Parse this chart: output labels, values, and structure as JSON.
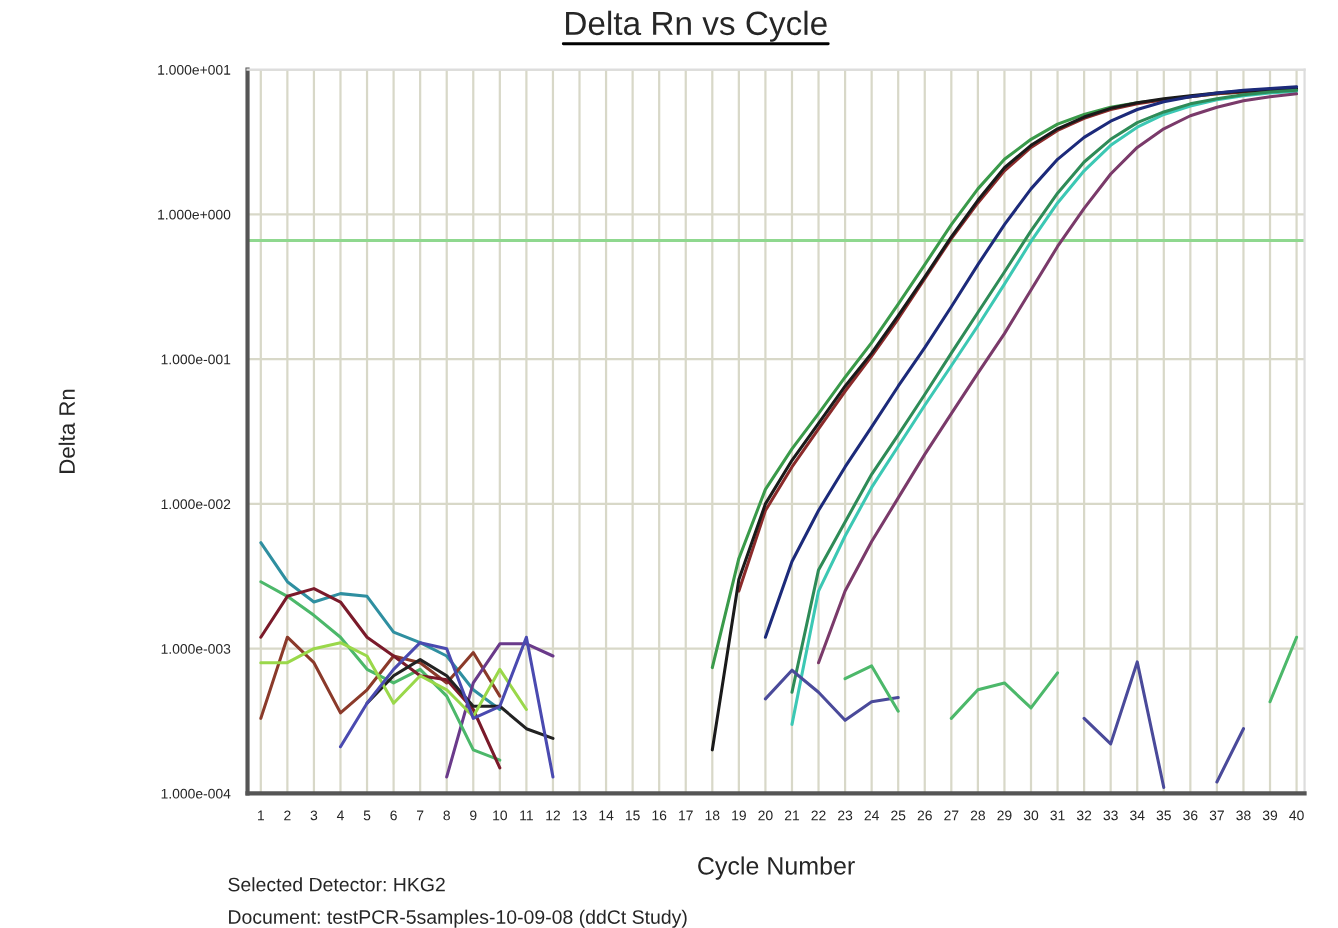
{
  "chart_data": {
    "type": "line",
    "title": "Delta Rn vs Cycle",
    "xlabel": "Cycle Number",
    "ylabel": "Delta Rn",
    "annotations": [
      "Selected Detector: HKG2",
      "Document: testPCR-5samples-10-09-08 (ddCt Study)"
    ],
    "log": "y",
    "grid": true,
    "legend": false,
    "marker": "none",
    "line_style": "solid",
    "xlim": [
      0.5,
      40.3
    ],
    "xticks": [
      1,
      2,
      3,
      4,
      5,
      6,
      7,
      8,
      9,
      10,
      11,
      12,
      13,
      14,
      15,
      16,
      17,
      18,
      19,
      20,
      21,
      22,
      23,
      24,
      25,
      26,
      27,
      28,
      29,
      30,
      31,
      32,
      33,
      34,
      35,
      36,
      37,
      38,
      39,
      40
    ],
    "ylim": [
      0.0001,
      10
    ],
    "yticks": [
      {
        "value": 0.0001,
        "label": "1.000e-004"
      },
      {
        "value": 0.001,
        "label": "1.000e-003"
      },
      {
        "value": 0.01,
        "label": "1.000e-002"
      },
      {
        "value": 0.1,
        "label": "1.000e-001"
      },
      {
        "value": 1,
        "label": "1.000e+000"
      },
      {
        "value": 10,
        "label": "1.000e+001"
      }
    ],
    "ref_lines": [
      {
        "axis": "y",
        "value": 0.66,
        "color": "#8fd88f"
      }
    ],
    "series": [
      {
        "color": "#3a9a4a",
        "x": [
          18,
          19,
          20,
          21,
          22,
          23,
          24,
          25,
          26,
          27,
          28,
          29,
          30,
          31,
          32,
          33,
          34,
          35,
          36,
          37,
          38,
          39,
          40
        ],
        "values": [
          0.00074,
          0.0042,
          0.0126,
          0.024,
          0.042,
          0.075,
          0.13,
          0.24,
          0.45,
          0.85,
          1.5,
          2.4,
          3.3,
          4.2,
          4.9,
          5.5,
          5.9,
          6.2,
          6.5,
          6.8,
          7.0,
          7.1,
          7.2
        ]
      },
      {
        "color": "#8b2a2a",
        "x": [
          19,
          20,
          21,
          22,
          23,
          24,
          25,
          26,
          27,
          28,
          29,
          30,
          31,
          32,
          33,
          34,
          35,
          36,
          37,
          38,
          39,
          40
        ],
        "values": [
          0.0025,
          0.009,
          0.018,
          0.033,
          0.06,
          0.105,
          0.19,
          0.36,
          0.68,
          1.2,
          2.0,
          2.9,
          3.8,
          4.6,
          5.3,
          5.8,
          6.2,
          6.5,
          6.8,
          7.0,
          7.2,
          7.3
        ]
      },
      {
        "color": "#1a1a1a",
        "x": [
          18,
          19,
          20,
          21,
          22,
          23,
          24,
          25,
          26,
          27,
          28,
          29,
          30,
          31,
          32,
          33,
          34,
          35,
          36,
          37,
          38,
          39,
          40
        ],
        "values": [
          0.0002,
          0.003,
          0.01,
          0.02,
          0.036,
          0.065,
          0.11,
          0.2,
          0.37,
          0.7,
          1.25,
          2.1,
          3.0,
          3.9,
          4.7,
          5.4,
          5.9,
          6.3,
          6.6,
          6.9,
          7.1,
          7.3,
          7.4
        ]
      },
      {
        "color": "#1c2a7a",
        "x": [
          20,
          21,
          22,
          23,
          24,
          25,
          26,
          27,
          28,
          29,
          30,
          31,
          32,
          33,
          34,
          35,
          36,
          37,
          38,
          39,
          40
        ],
        "values": [
          0.0012,
          0.004,
          0.009,
          0.018,
          0.034,
          0.065,
          0.12,
          0.23,
          0.45,
          0.85,
          1.5,
          2.4,
          3.4,
          4.4,
          5.3,
          6.0,
          6.5,
          6.9,
          7.2,
          7.4,
          7.6
        ]
      },
      {
        "color": "#3cc8b4",
        "x": [
          21,
          22,
          23,
          24,
          25,
          26,
          27,
          28,
          29,
          30,
          31,
          32,
          33,
          34,
          35,
          36,
          37,
          38,
          39,
          40
        ],
        "values": [
          0.0003,
          0.0025,
          0.006,
          0.013,
          0.025,
          0.048,
          0.09,
          0.17,
          0.33,
          0.65,
          1.2,
          2.0,
          3.0,
          4.0,
          4.9,
          5.6,
          6.2,
          6.6,
          6.9,
          7.1
        ]
      },
      {
        "color": "#2e8b57",
        "x": [
          21,
          22,
          23,
          24,
          25,
          26,
          27,
          28,
          29,
          30,
          31,
          32,
          33,
          34,
          35,
          36,
          37,
          38,
          39,
          40
        ],
        "values": [
          0.0005,
          0.0035,
          0.0075,
          0.016,
          0.03,
          0.057,
          0.11,
          0.21,
          0.4,
          0.77,
          1.4,
          2.3,
          3.3,
          4.3,
          5.1,
          5.8,
          6.3,
          6.7,
          7.0,
          7.2
        ]
      },
      {
        "color": "#7a3a6a",
        "x": [
          22,
          23,
          24,
          25,
          26,
          27,
          28,
          29,
          30,
          31,
          32,
          33,
          34,
          35,
          36,
          37,
          38,
          39,
          40
        ],
        "values": [
          0.0008,
          0.0025,
          0.0055,
          0.011,
          0.022,
          0.042,
          0.08,
          0.15,
          0.3,
          0.6,
          1.1,
          1.9,
          2.9,
          3.9,
          4.8,
          5.5,
          6.1,
          6.5,
          6.8
        ]
      },
      {
        "color": "#2f8fa0",
        "x": [
          1,
          2,
          3,
          4,
          5,
          6,
          7,
          8,
          9,
          10
        ],
        "values": [
          0.0054,
          0.0029,
          0.0021,
          0.0024,
          0.0023,
          0.0013,
          0.0011,
          0.00089,
          0.00052,
          0.00038
        ]
      },
      {
        "color": "#8b3a2a",
        "x": [
          1,
          2,
          3,
          4,
          5,
          6,
          7,
          8,
          9,
          10
        ],
        "values": [
          0.00033,
          0.0012,
          0.0008,
          0.00036,
          0.00052,
          0.00089,
          0.0008,
          0.00058,
          0.00094,
          0.00047
        ]
      },
      {
        "color": "#6a3a8a",
        "x": [
          8,
          9,
          10,
          11,
          12
        ],
        "values": [
          0.00013,
          0.00058,
          0.00108,
          0.00108,
          0.00089
        ]
      },
      {
        "color": "#4cb86a",
        "x": [
          1,
          2,
          3,
          4,
          5,
          6,
          7,
          8,
          9,
          10
        ],
        "values": [
          0.0029,
          0.0023,
          0.0017,
          0.0012,
          0.00072,
          0.00058,
          0.00072,
          0.00047,
          0.0002,
          0.00017
        ]
      },
      {
        "color": "#7a1a2a",
        "x": [
          1,
          2,
          3,
          4,
          5,
          6,
          7,
          8,
          9,
          10
        ],
        "values": [
          0.0012,
          0.0023,
          0.0026,
          0.0021,
          0.0012,
          0.00089,
          0.00065,
          0.00061,
          0.00038,
          0.00015
        ]
      },
      {
        "color": "#222222",
        "x": [
          5,
          6,
          7,
          8,
          9,
          10,
          11,
          12
        ],
        "values": [
          0.00042,
          0.00065,
          0.00084,
          0.00065,
          0.0004,
          0.0004,
          0.00028,
          0.00024
        ]
      },
      {
        "color": "#9ad84a",
        "x": [
          1,
          2,
          3,
          4,
          5,
          6,
          7,
          8,
          9,
          10,
          11
        ],
        "values": [
          0.0008,
          0.0008,
          0.001,
          0.0011,
          0.00089,
          0.00042,
          0.00065,
          0.00052,
          0.00034,
          0.00072,
          0.00038
        ]
      },
      {
        "color": "#4a4ab0",
        "x": [
          4,
          5,
          6,
          7,
          8,
          9,
          10,
          11,
          12
        ],
        "values": [
          0.00021,
          0.00042,
          0.00072,
          0.0011,
          0.001,
          0.00033,
          0.0004,
          0.0012,
          0.00013
        ]
      },
      {
        "color": "#4a4a9a",
        "x": [
          20,
          21,
          22,
          23,
          24,
          25,
          26,
          27,
          28,
          29,
          30,
          31,
          32,
          33,
          34,
          35,
          36,
          37,
          38
        ],
        "values": [
          0.00045,
          0.00071,
          0.0005,
          0.00032,
          0.00043,
          0.00046,
          null,
          null,
          null,
          null,
          null,
          null,
          0.00033,
          0.00022,
          0.00081,
          0.00011,
          null,
          0.00012,
          0.00028
        ]
      },
      {
        "color": "#4cb86a",
        "x": [
          23,
          24,
          25,
          26,
          27,
          28,
          29,
          30,
          31,
          32,
          33,
          34,
          35,
          36,
          37,
          38,
          39,
          40
        ],
        "values": [
          0.00062,
          0.00076,
          0.00037,
          null,
          0.00033,
          0.00052,
          0.00058,
          0.00039,
          0.00068,
          null,
          null,
          null,
          null,
          null,
          null,
          null,
          0.00043,
          0.0012
        ]
      }
    ]
  }
}
